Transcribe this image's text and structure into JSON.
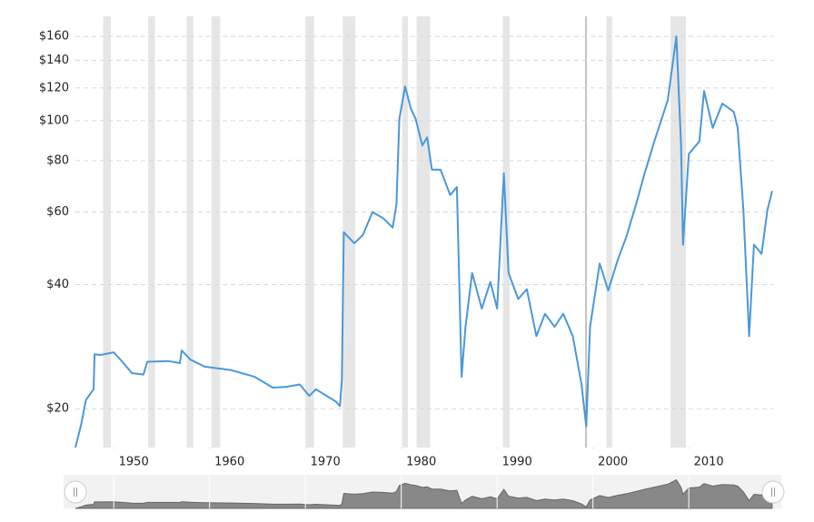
{
  "chart_data": {
    "type": "line",
    "color": "#4a98d9",
    "log_scale": true,
    "grid": true,
    "x": [
      1946,
      1946.6,
      1947.1,
      1947.9,
      1948,
      1948.6,
      1950,
      1950.9,
      1951.9,
      1953.1,
      1953.5,
      1955.7,
      1956.9,
      1957.1,
      1958,
      1959.5,
      1962.3,
      1964.7,
      1966.6,
      1968,
      1969.4,
      1970.4,
      1971.1,
      1973.2,
      1973.6,
      1973.8,
      1974,
      1975.1,
      1976,
      1977,
      1978.1,
      1979.1,
      1979.5,
      1979.8,
      1980.4,
      1981,
      1981.5,
      1982.2,
      1982.7,
      1983.2,
      1984.1,
      1985.1,
      1985.8,
      1986.3,
      1986.7,
      1987.4,
      1988.4,
      1989.3,
      1990,
      1990.7,
      1991.2,
      1992.2,
      1993.1,
      1994.1,
      1995,
      1996,
      1996.9,
      1997.9,
      1998.8,
      1999.3,
      1999.7,
      2000.7,
      2001.6,
      2002.6,
      2003.5,
      2004.5,
      2005.4,
      2006.4,
      2007.8,
      2008.7,
      2009.2,
      2009.4,
      2010,
      2011.1,
      2011.6,
      2012.5,
      2013.5,
      2014.7,
      2015.1,
      2015.7,
      2016.3,
      2016.8,
      2017.6,
      2018.2,
      2018.7
    ],
    "values": [
      16.1,
      18.3,
      21,
      22.3,
      27.1,
      27,
      27.4,
      26,
      24.4,
      24.2,
      26,
      26.1,
      25.8,
      27.7,
      26.3,
      25.3,
      24.8,
      23.9,
      22.5,
      22.6,
      22.9,
      21.5,
      22.3,
      20.8,
      20.3,
      23.5,
      53.6,
      50.4,
      52.8,
      60,
      58,
      55,
      62.6,
      101,
      121,
      107,
      101,
      87,
      91,
      76,
      76,
      66,
      69,
      23.9,
      31.6,
      42.7,
      35,
      40.6,
      35,
      74.5,
      42.7,
      36.9,
      39,
      30,
      34,
      31.6,
      34,
      30,
      23,
      18.1,
      31.6,
      45,
      38.7,
      46,
      52.4,
      62.6,
      74.5,
      89,
      112,
      160,
      87,
      50,
      83,
      89,
      118,
      96,
      110,
      105,
      96,
      60.6,
      30,
      50,
      47.5,
      60.6,
      67.5
    ],
    "recessions": [
      [
        1948.9,
        1949.7
      ],
      [
        1953.6,
        1954.3
      ],
      [
        1957.6,
        1958.3
      ],
      [
        1960.2,
        1961.1
      ],
      [
        1970.0,
        1970.9
      ],
      [
        1973.9,
        1975.2
      ],
      [
        1980.1,
        1980.7
      ],
      [
        1981.6,
        1983.0
      ],
      [
        1990.6,
        1991.3
      ],
      [
        2001.4,
        2002.0
      ],
      [
        2008.1,
        2009.7
      ]
    ],
    "xlim": [
      1946,
      2018.8
    ],
    "xticks": [
      1950,
      1960,
      1970,
      1980,
      1990,
      2000,
      2010
    ],
    "ylim": [
      16.1,
      179
    ],
    "yticks": [
      {
        "value": 20,
        "label": "$20"
      },
      {
        "value": 40,
        "label": "$40"
      },
      {
        "value": 60,
        "label": "$60"
      },
      {
        "value": 80,
        "label": "$80"
      },
      {
        "value": 100,
        "label": "$100"
      },
      {
        "value": 120,
        "label": "$120"
      },
      {
        "value": 140,
        "label": "$140"
      },
      {
        "value": 160,
        "label": "$160"
      }
    ]
  }
}
